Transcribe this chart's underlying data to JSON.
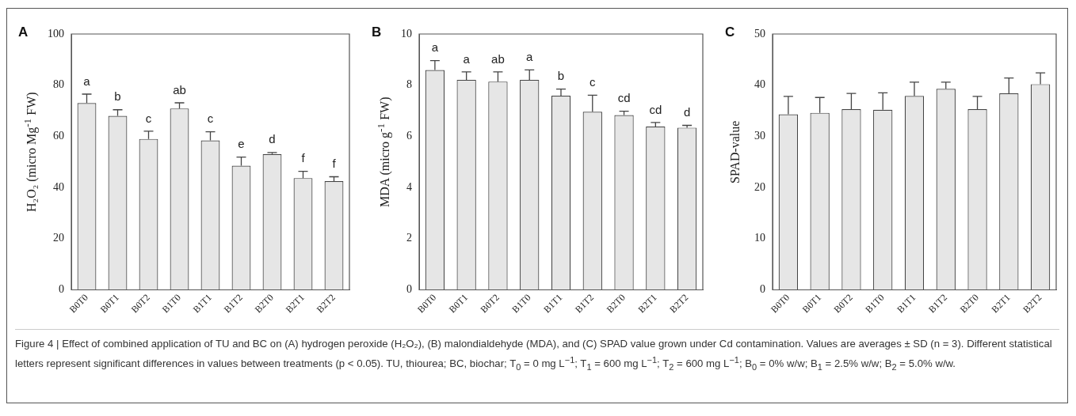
{
  "chart_data": [
    {
      "type": "bar",
      "title": "A",
      "ylabel": "H₂O₂ (micro Mg$^{-1}$ FW)",
      "categories": [
        "B0T0",
        "B0T1",
        "B0T2",
        "B1T0",
        "B1T1",
        "B1T2",
        "B2T0",
        "B2T1",
        "B2T2"
      ],
      "values": [
        73,
        68,
        59,
        70.9,
        58.4,
        48.5,
        53.1,
        43.7,
        42.5
      ],
      "errors": [
        3.5,
        2.4,
        3,
        2.2,
        3.4,
        3.4,
        0.6,
        2.6,
        1.7
      ],
      "color": "#e6e6e6",
      "ylim": [
        0,
        100
      ],
      "yticks": [
        0,
        20,
        40,
        60,
        80,
        100
      ],
      "grid": false,
      "legend": false,
      "annotations": [
        {
          "text": "a",
          "x": "B0T0",
          "y": 76.5
        },
        {
          "text": "b",
          "x": "B0T1",
          "y": 70.4
        },
        {
          "text": "c",
          "x": "B0T2",
          "y": 62
        },
        {
          "text": "ab",
          "x": "B1T0",
          "y": 73.1
        },
        {
          "text": "c",
          "x": "B1T1",
          "y": 61.8
        },
        {
          "text": "e",
          "x": "B1T2",
          "y": 51.9
        },
        {
          "text": "d",
          "x": "B2T0",
          "y": 53.7
        },
        {
          "text": "f",
          "x": "B2T1",
          "y": 46.3
        },
        {
          "text": "f",
          "x": "B2T2",
          "y": 44.2
        },
        "Figure 4 | Effect of combined application of TU and BC on (A) hydrogen peroxide (H₂O₂), (B) malondialdehyde (MDA), and (C) SPAD value grown under Cd contamination. Values are averages ± SD (n = 3). Different statistical letters represent significant differences in values between treatments (p < 0.05). TU, thiourea; BC, biochar; T$_{0}$ = 0 mg L$^{−1}$; T$_{1}$ = 600 mg L$^{−1}$; T$_{2}$ = 600 mg L$^{−1}$; B$_{0}$ = 0% w/w; B$_{1}$ = 2.5% w/w; B$_{2}$ = 5.0% w/w."
      ]
    },
    {
      "type": "bar",
      "title": "B",
      "ylabel": "MDA (micro g$^{-1}$ FW)",
      "categories": [
        "B0T0",
        "B0T1",
        "B0T2",
        "B1T0",
        "B1T1",
        "B1T2",
        "B2T0",
        "B2T1",
        "B2T2"
      ],
      "values": [
        8.59,
        8.21,
        8.14,
        8.21,
        7.59,
        6.96,
        6.83,
        6.38,
        6.34
      ],
      "errors": [
        0.37,
        0.31,
        0.38,
        0.39,
        0.26,
        0.65,
        0.15,
        0.16,
        0.09
      ],
      "color": "#e6e6e6",
      "ylim": [
        0,
        10
      ],
      "yticks": [
        0,
        2,
        4,
        6,
        8,
        10
      ],
      "grid": false,
      "legend": false,
      "annotations": [
        {
          "text": "a",
          "x": "B0T0",
          "y": 8.96
        },
        {
          "text": "a",
          "x": "B0T1",
          "y": 8.52
        },
        {
          "text": "ab",
          "x": "B0T2",
          "y": 8.52
        },
        {
          "text": "a",
          "x": "B1T0",
          "y": 8.6
        },
        {
          "text": "b",
          "x": "B1T1",
          "y": 7.85
        },
        {
          "text": "c",
          "x": "B1T2",
          "y": 7.61
        },
        {
          "text": "cd",
          "x": "B2T0",
          "y": 6.98
        },
        {
          "text": "cd",
          "x": "B2T1",
          "y": 6.54
        },
        {
          "text": "d",
          "x": "B2T2",
          "y": 6.43
        }
      ]
    },
    {
      "type": "bar",
      "title": "C",
      "ylabel": "SPAD-value",
      "categories": [
        "B0T0",
        "B0T1",
        "B0T2",
        "B1T0",
        "B1T1",
        "B1T2",
        "B2T0",
        "B2T1",
        "B2T2"
      ],
      "values": [
        34.3,
        34.6,
        35.3,
        35.2,
        37.9,
        39.3,
        35.3,
        38.4,
        40.2
      ],
      "errors": [
        3.5,
        3,
        3.1,
        3.3,
        2.7,
        1.3,
        2.5,
        3,
        2.2
      ],
      "color": "#e6e6e6",
      "ylim": [
        0,
        50
      ],
      "yticks": [
        0,
        10,
        20,
        30,
        40,
        50
      ],
      "grid": false,
      "legend": false
    }
  ]
}
